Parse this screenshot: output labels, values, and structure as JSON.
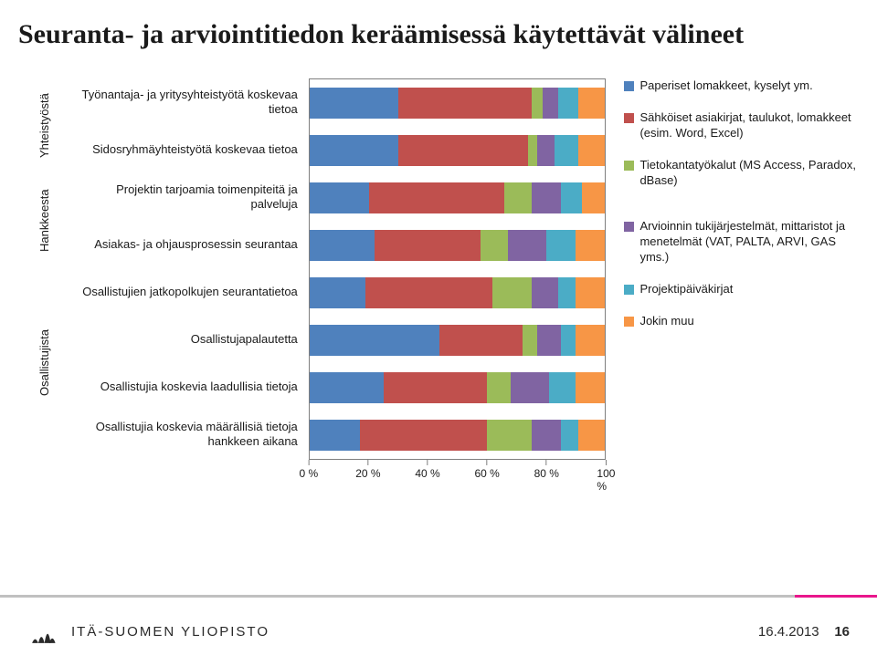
{
  "title": "Seuranta- ja arviointitiedon keräämisessä käytettävät välineet",
  "axis": {
    "ticks": [
      {
        "pos": 0,
        "label": "0 %"
      },
      {
        "pos": 20,
        "label": "20 %"
      },
      {
        "pos": 40,
        "label": "40 %"
      },
      {
        "pos": 60,
        "label": "60 %"
      },
      {
        "pos": 80,
        "label": "80 %"
      },
      {
        "pos": 100,
        "label": "100 %"
      }
    ]
  },
  "series_colors": {
    "paper": "#4f81bd",
    "edoc": "#c0504d",
    "db": "#9bbb59",
    "assess": "#8064a2",
    "diary": "#4bacc6",
    "other": "#f79646"
  },
  "groups": [
    {
      "label": "Yhteistyöstä",
      "rows": [
        {
          "label": "Työnantaja- ja yritysyhteistyötä koskevaa tietoa",
          "segments": [
            {
              "c": "paper",
              "v": 30
            },
            {
              "c": "edoc",
              "v": 45
            },
            {
              "c": "db",
              "v": 4
            },
            {
              "c": "assess",
              "v": 5
            },
            {
              "c": "diary",
              "v": 7
            },
            {
              "c": "other",
              "v": 9
            }
          ]
        },
        {
          "label": "Sidosryhmäyhteistyötä koskevaa tietoa",
          "segments": [
            {
              "c": "paper",
              "v": 30
            },
            {
              "c": "edoc",
              "v": 44
            },
            {
              "c": "db",
              "v": 3
            },
            {
              "c": "assess",
              "v": 6
            },
            {
              "c": "diary",
              "v": 8
            },
            {
              "c": "other",
              "v": 9
            }
          ]
        }
      ]
    },
    {
      "label": "Hankkeesta",
      "rows": [
        {
          "label": "Projektin tarjoamia toimenpiteitä ja palveluja",
          "segments": [
            {
              "c": "paper",
              "v": 20
            },
            {
              "c": "edoc",
              "v": 46
            },
            {
              "c": "db",
              "v": 9
            },
            {
              "c": "assess",
              "v": 10
            },
            {
              "c": "diary",
              "v": 7
            },
            {
              "c": "other",
              "v": 8
            }
          ]
        },
        {
          "label": "Asiakas- ja ohjausprosessin seurantaa",
          "segments": [
            {
              "c": "paper",
              "v": 22
            },
            {
              "c": "edoc",
              "v": 36
            },
            {
              "c": "db",
              "v": 9
            },
            {
              "c": "assess",
              "v": 13
            },
            {
              "c": "diary",
              "v": 10
            },
            {
              "c": "other",
              "v": 10
            }
          ]
        }
      ]
    },
    {
      "label": "Osallistujista",
      "rows": [
        {
          "label": "Osallistujien jatkopolkujen seurantatietoa",
          "segments": [
            {
              "c": "paper",
              "v": 19
            },
            {
              "c": "edoc",
              "v": 43
            },
            {
              "c": "db",
              "v": 13
            },
            {
              "c": "assess",
              "v": 9
            },
            {
              "c": "diary",
              "v": 6
            },
            {
              "c": "other",
              "v": 10
            }
          ]
        },
        {
          "label": "Osallistujapalautetta",
          "segments": [
            {
              "c": "paper",
              "v": 44
            },
            {
              "c": "edoc",
              "v": 28
            },
            {
              "c": "db",
              "v": 5
            },
            {
              "c": "assess",
              "v": 8
            },
            {
              "c": "diary",
              "v": 5
            },
            {
              "c": "other",
              "v": 10
            }
          ]
        },
        {
          "label": "Osallistujia koskevia laadullisia tietoja",
          "segments": [
            {
              "c": "paper",
              "v": 25
            },
            {
              "c": "edoc",
              "v": 35
            },
            {
              "c": "db",
              "v": 8
            },
            {
              "c": "assess",
              "v": 13
            },
            {
              "c": "diary",
              "v": 9
            },
            {
              "c": "other",
              "v": 10
            }
          ]
        },
        {
          "label": "Osallistujia koskevia määrällisiä tietoja hankkeen aikana",
          "segments": [
            {
              "c": "paper",
              "v": 17
            },
            {
              "c": "edoc",
              "v": 43
            },
            {
              "c": "db",
              "v": 15
            },
            {
              "c": "assess",
              "v": 10
            },
            {
              "c": "diary",
              "v": 6
            },
            {
              "c": "other",
              "v": 9
            }
          ]
        }
      ]
    }
  ],
  "legend": {
    "top": [
      {
        "c": "paper",
        "label": "Paperiset lomakkeet, kyselyt ym."
      },
      {
        "c": "edoc",
        "label": "Sähköiset asiakirjat, taulukot, lomakkeet (esim. Word, Excel)"
      },
      {
        "c": "db",
        "label": "Tietokantatyökalut (MS Access, Paradox, dBase)"
      }
    ],
    "bottom": [
      {
        "c": "assess",
        "label": "Arvioinnin tukijärjestelmät, mittaristot ja menetelmät (VAT, PALTA, ARVI, GAS yms.)"
      },
      {
        "c": "diary",
        "label": "Projektipäiväkirjat"
      },
      {
        "c": "other",
        "label": "Jokin muu"
      }
    ]
  },
  "footer": {
    "university": "ITÄ-SUOMEN YLIOPISTO",
    "date": "16.4.2013",
    "page": "16"
  }
}
